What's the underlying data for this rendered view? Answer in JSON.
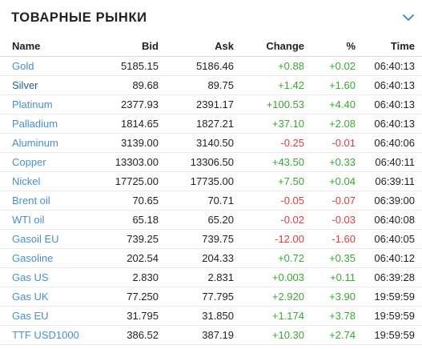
{
  "widget": {
    "title": "ТОВАРНЫЕ РЫНКИ",
    "collapse_icon": "chevron-down-icon"
  },
  "columns": {
    "name": "Name",
    "bid": "Bid",
    "ask": "Ask",
    "change": "Change",
    "pct": "%",
    "time": "Time"
  },
  "colors": {
    "link": "#4a8fc9",
    "positive": "#3aa534",
    "negative": "#e03a3a"
  },
  "rows": [
    {
      "name": "Gold",
      "bid": "5185.15",
      "ask": "5186.46",
      "change": "+0.88",
      "pct": "+0.02",
      "time": "06:40:13",
      "trend": "up"
    },
    {
      "name": "Silver",
      "bid": "89.68",
      "ask": "89.75",
      "change": "+1.42",
      "pct": "+1.60",
      "time": "06:40:13",
      "trend": "up"
    },
    {
      "name": "Platinum",
      "bid": "2377.93",
      "ask": "2391.17",
      "change": "+100.53",
      "pct": "+4.40",
      "time": "06:40:13",
      "trend": "up"
    },
    {
      "name": "Palladium",
      "bid": "1814.65",
      "ask": "1827.21",
      "change": "+37.10",
      "pct": "+2.08",
      "time": "06:40:13",
      "trend": "up"
    },
    {
      "name": "Aluminum",
      "bid": "3139.00",
      "ask": "3140.50",
      "change": "-0.25",
      "pct": "-0.01",
      "time": "06:40:06",
      "trend": "down"
    },
    {
      "name": "Copper",
      "bid": "13303.00",
      "ask": "13306.50",
      "change": "+43.50",
      "pct": "+0.33",
      "time": "06:40:11",
      "trend": "up"
    },
    {
      "name": "Nickel",
      "bid": "17725.00",
      "ask": "17735.00",
      "change": "+7.50",
      "pct": "+0.04",
      "time": "06:39:11",
      "trend": "up"
    },
    {
      "name": "Brent oil",
      "bid": "70.65",
      "ask": "70.71",
      "change": "-0.05",
      "pct": "-0.07",
      "time": "06:39:00",
      "trend": "down"
    },
    {
      "name": "WTI oil",
      "bid": "65.18",
      "ask": "65.20",
      "change": "-0.02",
      "pct": "-0.03",
      "time": "06:40:08",
      "trend": "down"
    },
    {
      "name": "Gasoil EU",
      "bid": "739.25",
      "ask": "739.75",
      "change": "-12.00",
      "pct": "-1.60",
      "time": "06:40:05",
      "trend": "down"
    },
    {
      "name": "Gasoline",
      "bid": "202.54",
      "ask": "204.33",
      "change": "+0.72",
      "pct": "+0.35",
      "time": "06:40:12",
      "trend": "up"
    },
    {
      "name": "Gas US",
      "bid": "2.830",
      "ask": "2.831",
      "change": "+0.003",
      "pct": "+0.11",
      "time": "06:39:28",
      "trend": "up"
    },
    {
      "name": "Gas UK",
      "bid": "77.250",
      "ask": "77.795",
      "change": "+2.920",
      "pct": "+3.90",
      "time": "19:59:59",
      "trend": "up"
    },
    {
      "name": "Gas EU",
      "bid": "31.795",
      "ask": "31.850",
      "change": "+1.174",
      "pct": "+3.78",
      "time": "19:59:59",
      "trend": "up"
    },
    {
      "name": "TTF USD1000",
      "bid": "386.52",
      "ask": "387.19",
      "change": "+10.30",
      "pct": "+2.74",
      "time": "19:59:59",
      "trend": "up"
    }
  ]
}
